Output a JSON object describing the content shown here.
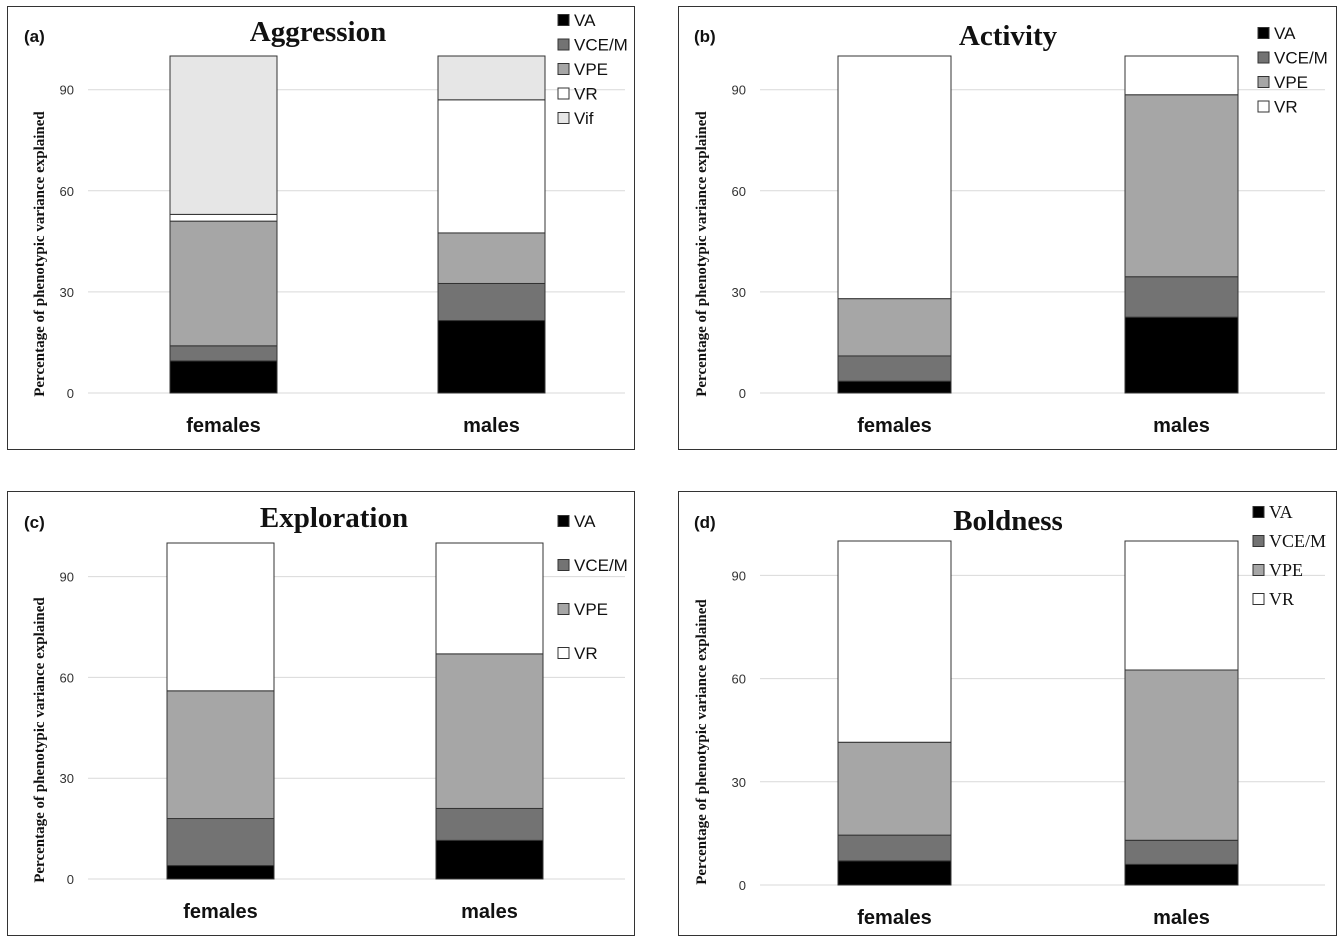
{
  "ylabel": "Percentage of phenotypic  variance explained",
  "chart_data": [
    {
      "type": "bar",
      "stacked": true,
      "panel_label": "(a)",
      "title": "Aggression",
      "ylabel": "Percentage of phenotypic  variance explained",
      "categories": [
        "females",
        "males"
      ],
      "yticks": [
        0,
        30,
        60,
        90
      ],
      "ylim": [
        0,
        100
      ],
      "grid": true,
      "legend_position": "top-right",
      "series": [
        {
          "name": "VA",
          "values": [
            9.5,
            21.5
          ],
          "color": "#000000"
        },
        {
          "name": "VCE/M",
          "values": [
            4.5,
            11
          ],
          "color": "#737373"
        },
        {
          "name": "VPE",
          "values": [
            37,
            15
          ],
          "color": "#a6a6a6"
        },
        {
          "name": "VR",
          "values": [
            2,
            39.5
          ],
          "color": "#ffffff"
        },
        {
          "name": "Vif",
          "values": [
            47,
            13
          ],
          "color": "#e6e6e6"
        }
      ]
    },
    {
      "type": "bar",
      "stacked": true,
      "panel_label": "(b)",
      "title": "Activity",
      "ylabel": "Percentage of phenotypic  variance explained",
      "categories": [
        "females",
        "males"
      ],
      "yticks": [
        0,
        30,
        60,
        90
      ],
      "ylim": [
        0,
        100
      ],
      "grid": true,
      "legend_position": "top-right",
      "series": [
        {
          "name": "VA",
          "values": [
            3.5,
            22.5
          ],
          "color": "#000000"
        },
        {
          "name": "VCE/M",
          "values": [
            7.5,
            12
          ],
          "color": "#737373"
        },
        {
          "name": "VPE",
          "values": [
            17,
            54
          ],
          "color": "#a6a6a6"
        },
        {
          "name": "VR",
          "values": [
            72,
            11.5
          ],
          "color": "#ffffff"
        }
      ]
    },
    {
      "type": "bar",
      "stacked": true,
      "panel_label": "(c)",
      "title": "Exploration",
      "ylabel": "Percentage of phenotypic  variance explained",
      "categories": [
        "females",
        "males"
      ],
      "yticks": [
        0,
        30,
        60,
        90
      ],
      "ylim": [
        0,
        100
      ],
      "grid": true,
      "legend_position": "top-right",
      "series": [
        {
          "name": "VA",
          "values": [
            4,
            11.5
          ],
          "color": "#000000"
        },
        {
          "name": "VCE/M",
          "values": [
            14,
            9.5
          ],
          "color": "#737373"
        },
        {
          "name": "VPE",
          "values": [
            38,
            46
          ],
          "color": "#a6a6a6"
        },
        {
          "name": "VR",
          "values": [
            44,
            33
          ],
          "color": "#ffffff"
        }
      ]
    },
    {
      "type": "bar",
      "stacked": true,
      "panel_label": "(d)",
      "title": "Boldness",
      "ylabel": "Percentage of phenotypic  variance explained",
      "categories": [
        "females",
        "males"
      ],
      "yticks": [
        0,
        30,
        60,
        90
      ],
      "ylim": [
        0,
        100
      ],
      "grid": true,
      "legend_position": "top-right",
      "series": [
        {
          "name": "VA",
          "values": [
            7,
            6
          ],
          "color": "#000000"
        },
        {
          "name": "VCE/M",
          "values": [
            7.5,
            7
          ],
          "color": "#737373"
        },
        {
          "name": "VPE",
          "values": [
            27,
            49.5
          ],
          "color": "#a6a6a6"
        },
        {
          "name": "VR",
          "values": [
            58.5,
            37.5
          ],
          "color": "#ffffff"
        }
      ]
    }
  ]
}
